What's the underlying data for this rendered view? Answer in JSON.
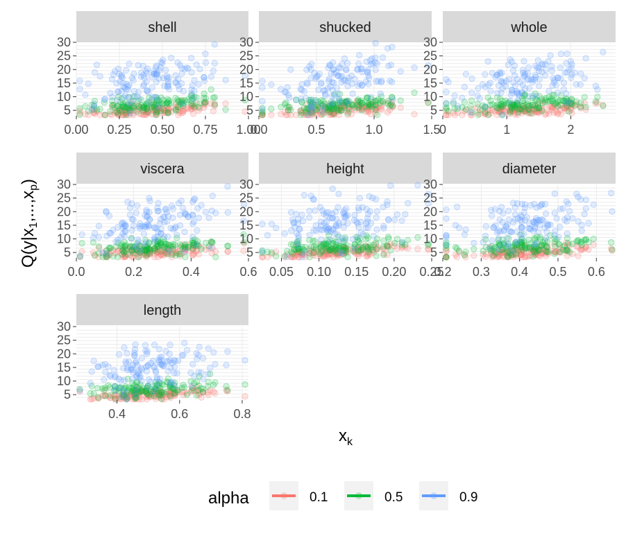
{
  "chart_data": {
    "type": "scatter",
    "title": "",
    "y_axis_label_parts": {
      "main": "Q",
      "open": "(",
      "y": "y",
      "bar": "|",
      "x1": "x",
      "x1_sub": "1",
      "dots": ",...,",
      "xp": "x",
      "xp_sub": "p",
      "close": ")"
    },
    "x_axis_label_parts": {
      "main": "x",
      "sub": "k"
    },
    "y_ticks": [
      5,
      10,
      15,
      20,
      25,
      30
    ],
    "ylim": [
      3,
      30
    ],
    "legend": {
      "title": "alpha",
      "position": "bottom",
      "entries": [
        {
          "label": "0.1",
          "color": "#F8766D"
        },
        {
          "label": "0.5",
          "color": "#00BA38"
        },
        {
          "label": "0.9",
          "color": "#619CFF"
        }
      ]
    },
    "panel_style": {
      "strip_fill": "#D9D9D9",
      "grid_color": "#EBEBEB"
    },
    "panels": [
      {
        "name": "shell",
        "xlim": [
          0,
          1.0
        ],
        "x_ticks": [
          0.0,
          0.25,
          0.5,
          0.75,
          1.0
        ],
        "x_tick_labels": [
          "0.00",
          "0.25",
          "0.50",
          "0.75",
          "1.00"
        ]
      },
      {
        "name": "shucked",
        "xlim": [
          0,
          1.5
        ],
        "x_ticks": [
          0.0,
          0.5,
          1.0,
          1.5
        ],
        "x_tick_labels": [
          "0.0",
          "0.5",
          "1.0",
          "1.5"
        ]
      },
      {
        "name": "whole",
        "xlim": [
          0,
          2.7
        ],
        "x_ticks": [
          0,
          1,
          2
        ],
        "x_tick_labels": [
          "0",
          "1",
          "2"
        ]
      },
      {
        "name": "viscera",
        "xlim": [
          0,
          0.6
        ],
        "x_ticks": [
          0.0,
          0.2,
          0.4,
          0.6
        ],
        "x_tick_labels": [
          "0.0",
          "0.2",
          "0.4",
          "0.6"
        ]
      },
      {
        "name": "height",
        "xlim": [
          0.02,
          0.25
        ],
        "x_ticks": [
          0.05,
          0.1,
          0.15,
          0.2,
          0.25
        ],
        "x_tick_labels": [
          "0.05",
          "0.10",
          "0.15",
          "0.20",
          "0.25"
        ]
      },
      {
        "name": "diameter",
        "xlim": [
          0.2,
          0.65
        ],
        "x_ticks": [
          0.2,
          0.3,
          0.4,
          0.5,
          0.6
        ],
        "x_tick_labels": [
          "0.2",
          "0.3",
          "0.4",
          "0.5",
          "0.6"
        ]
      },
      {
        "name": "length",
        "xlim": [
          0.27,
          0.82
        ],
        "x_ticks": [
          0.4,
          0.6,
          0.8
        ],
        "x_tick_labels": [
          "0.4",
          "0.6",
          "0.8"
        ]
      }
    ]
  }
}
